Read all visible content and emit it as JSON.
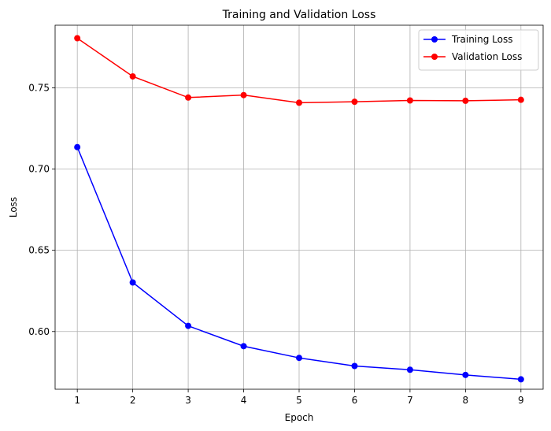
{
  "chart_data": {
    "type": "line",
    "title": "Training and Validation Loss",
    "xlabel": "Epoch",
    "ylabel": "Loss",
    "x": [
      1,
      2,
      3,
      4,
      5,
      6,
      7,
      8,
      9
    ],
    "xlim": [
      0.6,
      9.4
    ],
    "ylim": [
      0.5645,
      0.7885
    ],
    "xticks": [
      1,
      2,
      3,
      4,
      5,
      6,
      7,
      8,
      9
    ],
    "yticks": [
      0.6,
      0.65,
      0.7,
      0.75
    ],
    "ytick_labels": [
      "0.60",
      "0.65",
      "0.70",
      "0.75"
    ],
    "grid": true,
    "legend_position": "top-right",
    "series": [
      {
        "name": "Training Loss",
        "color": "#0000ff",
        "marker": "circle",
        "values": [
          0.7135,
          0.6302,
          0.6035,
          0.591,
          0.5838,
          0.5788,
          0.5765,
          0.5733,
          0.5706
        ]
      },
      {
        "name": "Validation Loss",
        "color": "#ff0000",
        "marker": "circle",
        "values": [
          0.7805,
          0.757,
          0.744,
          0.7455,
          0.7408,
          0.7414,
          0.7422,
          0.742,
          0.7426
        ]
      }
    ]
  }
}
